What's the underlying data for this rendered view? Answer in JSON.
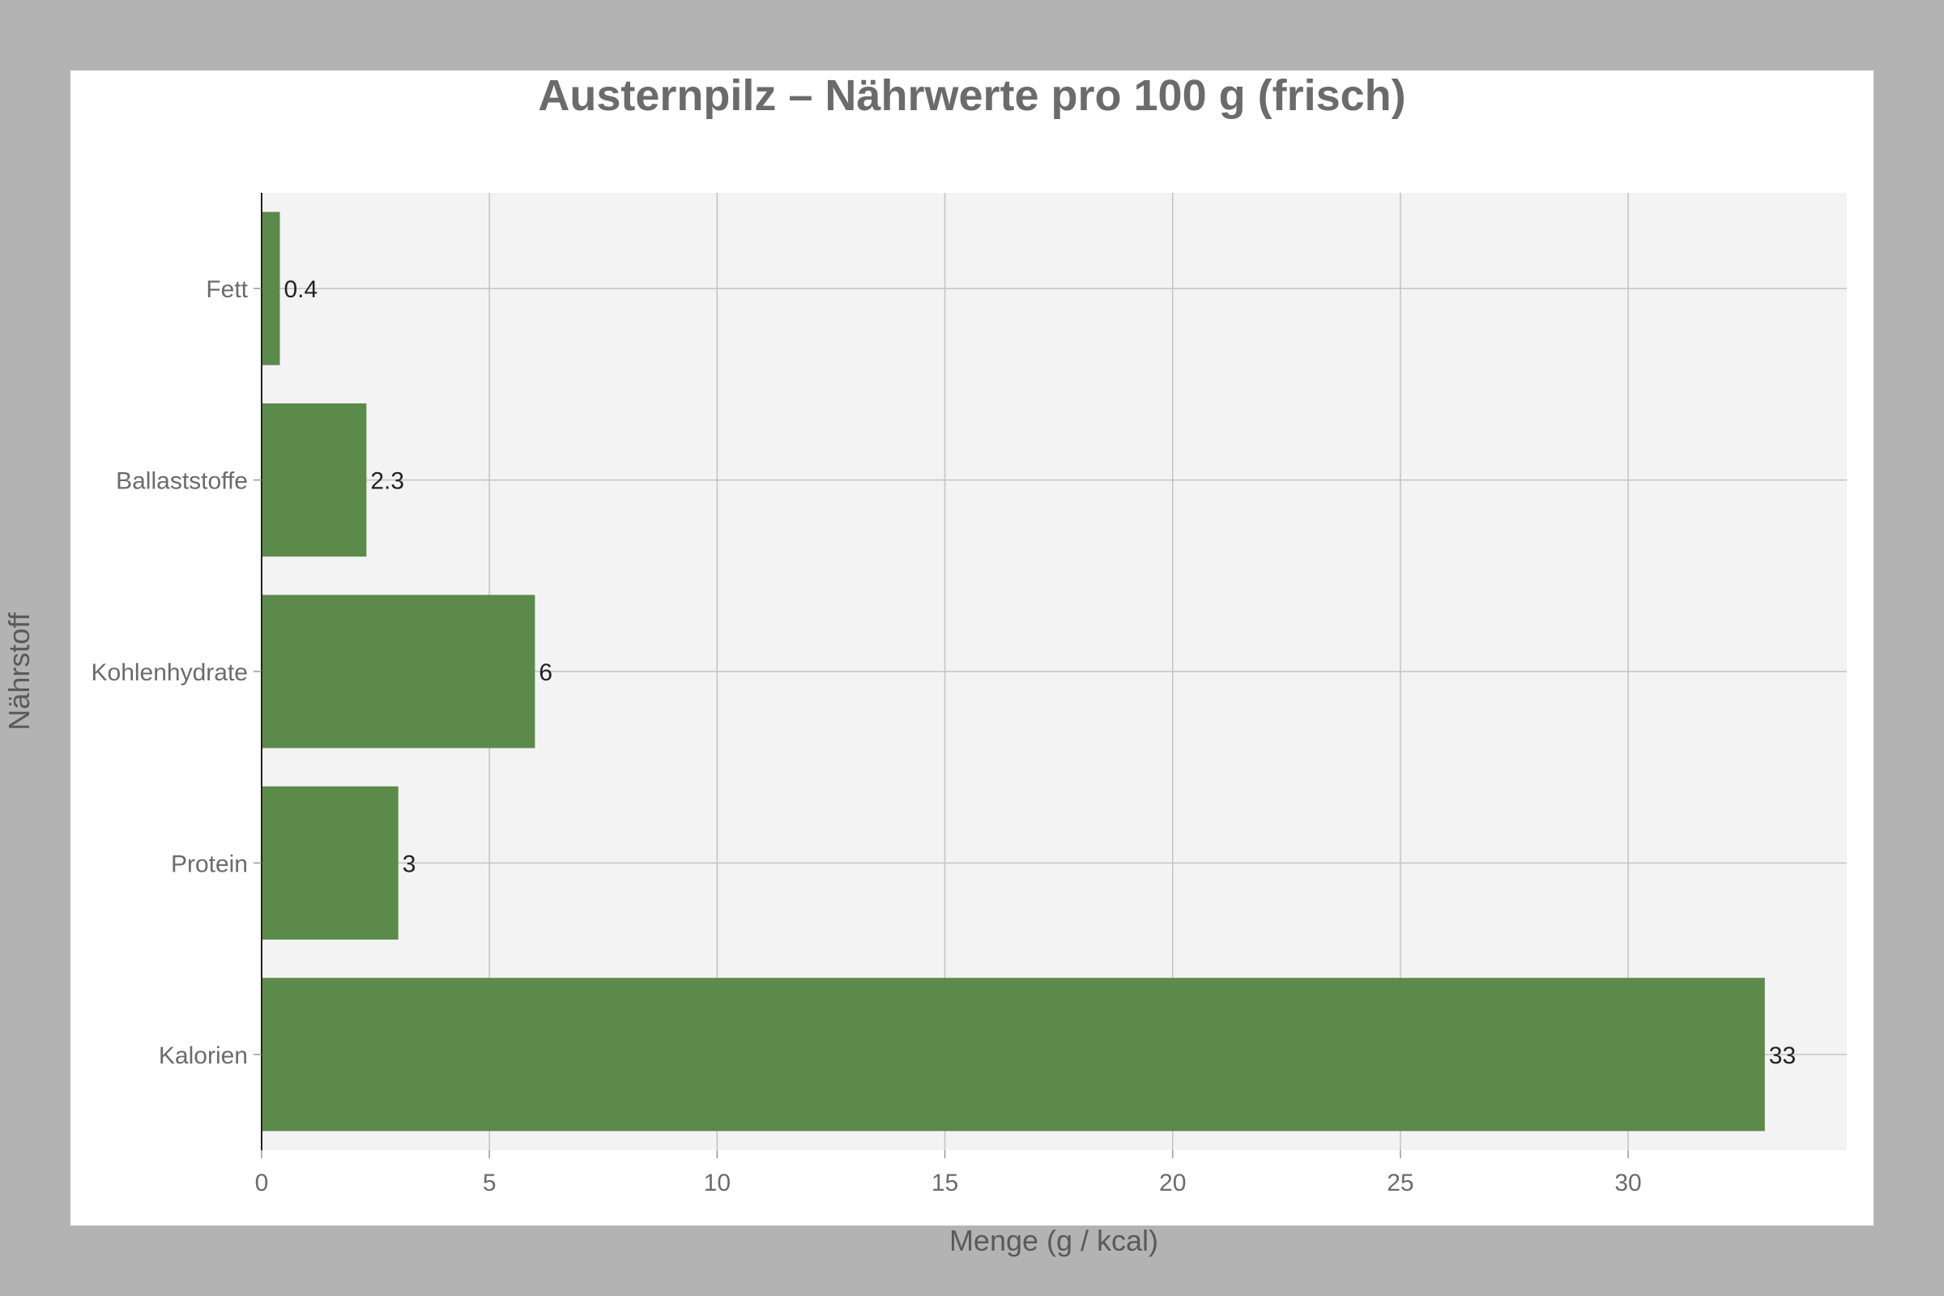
{
  "chart_data": {
    "type": "bar",
    "orientation": "horizontal",
    "title": "Austernpilz – Nährwerte pro 100 g (frisch)",
    "xlabel": "Menge (g / kcal)",
    "ylabel": "Nährstoff",
    "categories": [
      "Kalorien",
      "Protein",
      "Kohlenhydrate",
      "Ballaststoffe",
      "Fett"
    ],
    "values": [
      33,
      3,
      6,
      2.3,
      0.4
    ],
    "value_labels": [
      "33",
      "3",
      "6",
      "2.3",
      "0.4"
    ],
    "xlim": [
      0,
      34.8
    ],
    "xticks": [
      0,
      5,
      10,
      15,
      20,
      25,
      30
    ],
    "xtick_labels": [
      "0",
      "5",
      "10",
      "15",
      "20",
      "25",
      "30"
    ],
    "grid": true,
    "legend": "none"
  },
  "colors": {
    "bar": "#5c8a4a",
    "plot_background": "#f3f3f3",
    "figure_background": "#ffffff",
    "outer_background": "#b3b3b3",
    "grid": "#c4c4c4"
  }
}
